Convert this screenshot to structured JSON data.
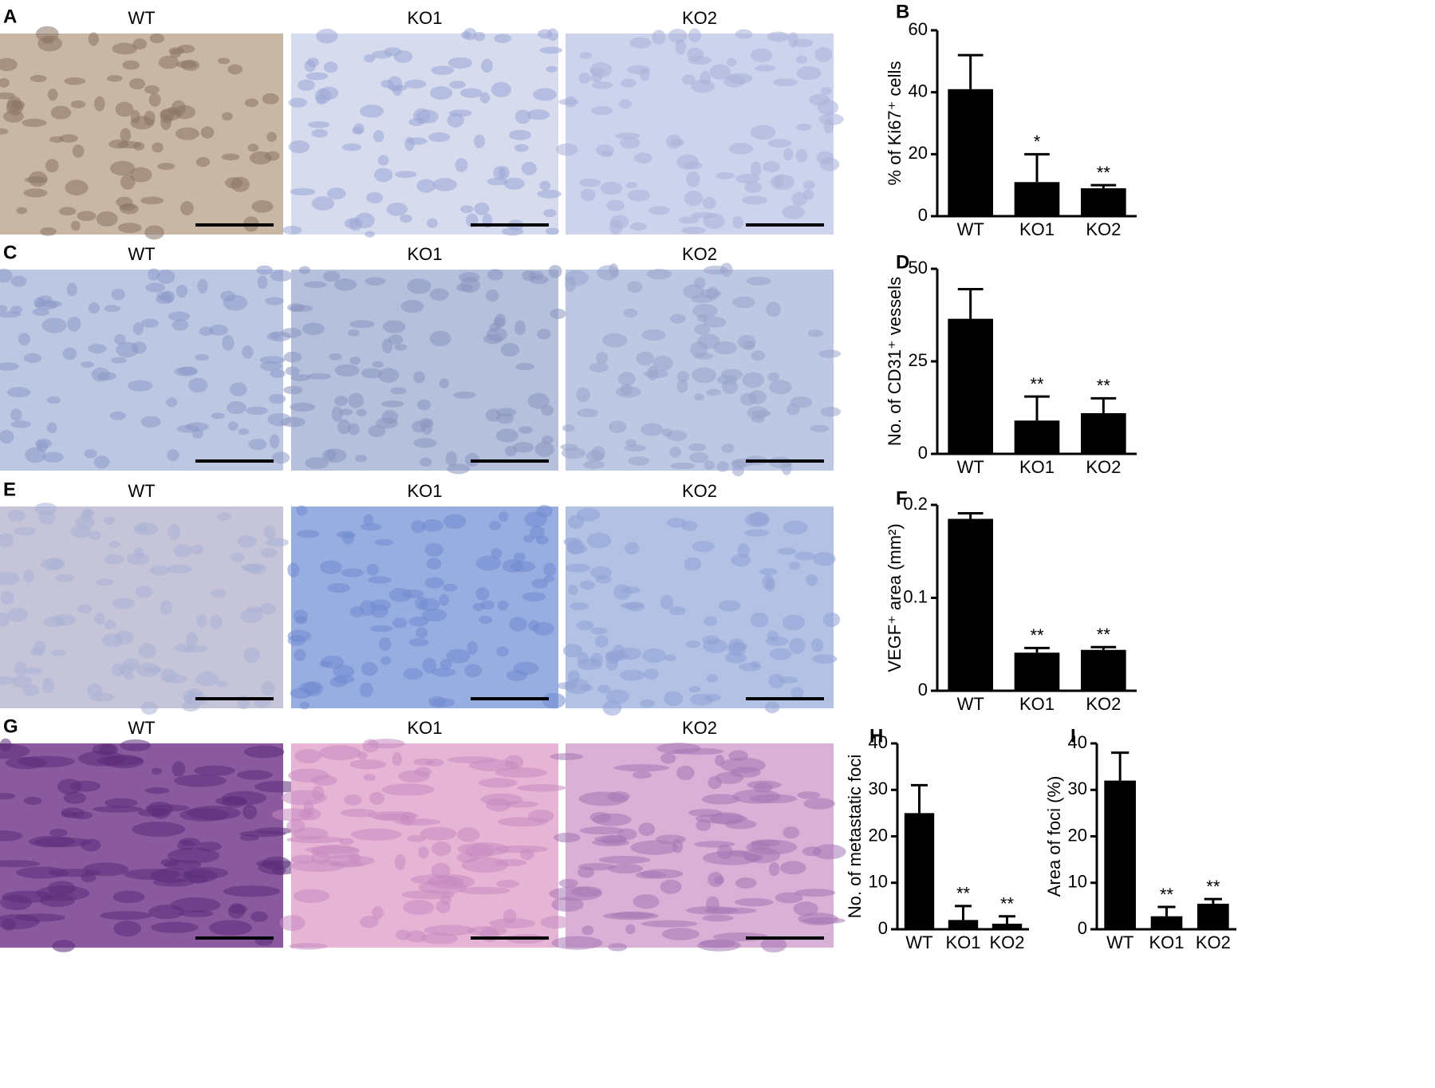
{
  "image_panels": [
    {
      "letter": "A",
      "labels": [
        "WT",
        "KO1",
        "KO2"
      ]
    },
    {
      "letter": "C",
      "labels": [
        "WT",
        "KO1",
        "KO2"
      ]
    },
    {
      "letter": "E",
      "labels": [
        "WT",
        "KO1",
        "KO2"
      ]
    },
    {
      "letter": "G",
      "labels": [
        "WT",
        "KO1",
        "KO2"
      ]
    }
  ],
  "chart_data": [
    {
      "type": "bar",
      "letter": "B",
      "ylabel": "% of Ki67⁺ cells",
      "categories": [
        "WT",
        "KO1",
        "KO2"
      ],
      "values": [
        41,
        11,
        9
      ],
      "errors": [
        11,
        9,
        1
      ],
      "significance": [
        null,
        "*",
        "**"
      ],
      "color": "#000000",
      "ylim": [
        0,
        60
      ],
      "yticks": [
        0,
        20,
        40,
        60
      ]
    },
    {
      "type": "bar",
      "letter": "D",
      "ylabel": "No. of CD31⁺ vessels",
      "categories": [
        "WT",
        "KO1",
        "KO2"
      ],
      "values": [
        36.5,
        9,
        11
      ],
      "errors": [
        8,
        6.5,
        4
      ],
      "significance": [
        null,
        "**",
        "**"
      ],
      "color": "#000000",
      "ylim": [
        0,
        50
      ],
      "yticks": [
        0,
        25,
        50
      ]
    },
    {
      "type": "bar",
      "letter": "F",
      "ylabel": "VEGF⁺ area (mm²)",
      "categories": [
        "WT",
        "KO1",
        "KO2"
      ],
      "values": [
        0.185,
        0.041,
        0.044
      ],
      "errors": [
        0.006,
        0.005,
        0.003
      ],
      "significance": [
        null,
        "**",
        "**"
      ],
      "color": "#000000",
      "ylim": [
        0,
        0.2
      ],
      "yticks": [
        0,
        0.1,
        0.2
      ]
    },
    {
      "type": "bar",
      "letter": "H",
      "ylabel": "No. of metastatic foci",
      "categories": [
        "WT",
        "KO1",
        "KO2"
      ],
      "values": [
        25,
        2,
        1.2
      ],
      "errors": [
        6,
        3,
        1.6
      ],
      "significance": [
        null,
        "**",
        "**"
      ],
      "color": "#000000",
      "ylim": [
        0,
        40
      ],
      "yticks": [
        0,
        10,
        20,
        30,
        40
      ]
    },
    {
      "type": "bar",
      "letter": "I",
      "ylabel": "Area of foci (%)",
      "categories": [
        "WT",
        "KO1",
        "KO2"
      ],
      "values": [
        32,
        2.8,
        5.5
      ],
      "errors": [
        6,
        2,
        1
      ],
      "significance": [
        null,
        "**",
        "**"
      ],
      "color": "#000000",
      "ylim": [
        0,
        40
      ],
      "yticks": [
        0,
        10,
        20,
        30,
        40
      ]
    }
  ]
}
